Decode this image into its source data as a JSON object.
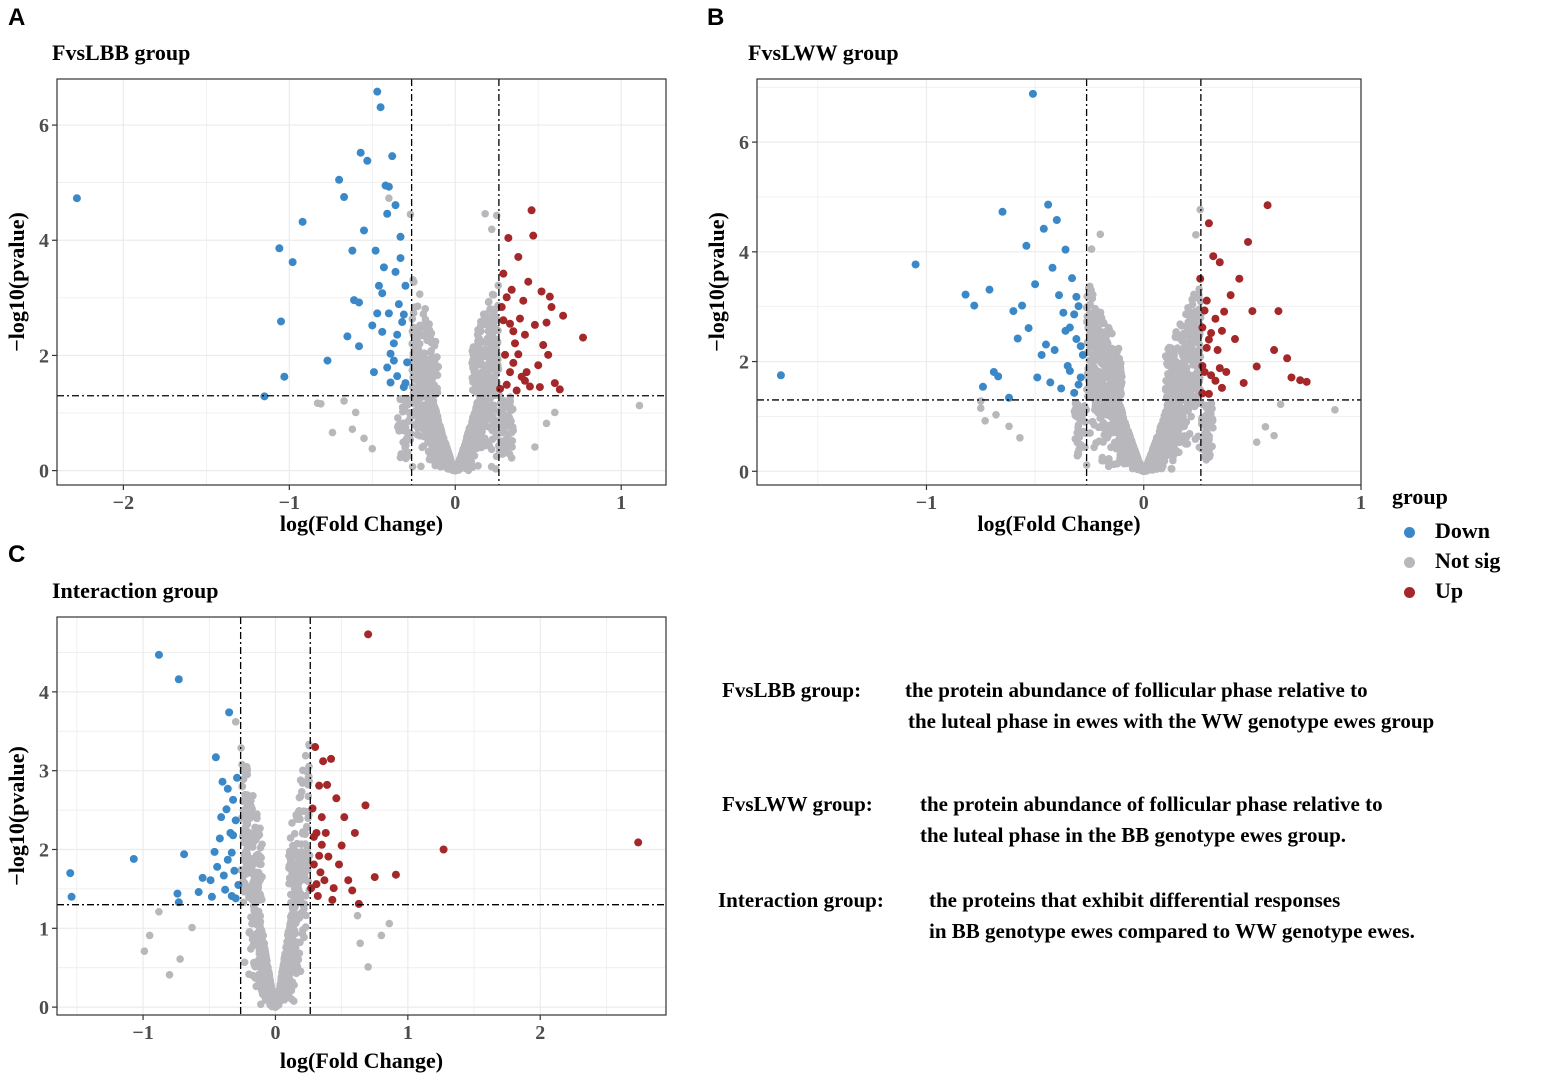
{
  "panels": {
    "A": {
      "letter": "A",
      "title": "FvsLBB group"
    },
    "B": {
      "letter": "B",
      "title": "FvsLWW group"
    },
    "C": {
      "letter": "C",
      "title": "Interaction group"
    }
  },
  "legend": {
    "title": "group",
    "items": [
      {
        "label": "Down",
        "color": "#3a88c8"
      },
      {
        "label": "Not sig",
        "color": "#b8b8bc"
      },
      {
        "label": "Up",
        "color": "#a4282a"
      }
    ]
  },
  "descriptions": {
    "fvslbb": {
      "label": "FvsLBB group:",
      "line1": "the protein abundance of follicular phase relative to",
      "line2": "the luteal phase in ewes with the WW genotype ewes group"
    },
    "fvslww": {
      "label": "FvsLWW group:",
      "line1": "the protein abundance of follicular phase relative to",
      "line2": "the luteal phase in the BB genotype ewes group."
    },
    "interaction": {
      "label": "Interaction group:",
      "line1": "the proteins that exhibit differential responses",
      "line2": "in BB genotype ewes compared to WW genotype ewes."
    }
  },
  "chart_data": [
    {
      "type": "scatter",
      "panel": "A",
      "title": "FvsLBB group",
      "xlabel": "log(Fold Change)",
      "ylabel": "−log10(pvalue)",
      "xlim": [
        -2.4,
        1.27
      ],
      "ylim": [
        -0.25,
        6.8
      ],
      "xticks": [
        -2,
        -1,
        0,
        1
      ],
      "yticks": [
        0,
        2,
        4,
        6
      ],
      "xtick_labels": [
        "−2",
        "−1",
        "0",
        "1"
      ],
      "ytick_labels": [
        "0",
        "2",
        "4",
        "6"
      ],
      "vlines": [
        -0.263,
        0.263
      ],
      "hline": 1.3,
      "cloud": {
        "xmax": 0.35,
        "n": 1100,
        "curv": 1.6
      },
      "down": [
        [
          -2.28,
          4.73
        ],
        [
          -1.15,
          1.29
        ],
        [
          -1.06,
          3.86
        ],
        [
          -1.05,
          2.59
        ],
        [
          -1.03,
          1.63
        ],
        [
          -0.98,
          3.62
        ],
        [
          -0.92,
          4.32
        ],
        [
          -0.77,
          1.91
        ],
        [
          -0.7,
          5.05
        ],
        [
          -0.67,
          4.75
        ],
        [
          -0.65,
          2.33
        ],
        [
          -0.62,
          3.82
        ],
        [
          -0.61,
          2.96
        ],
        [
          -0.58,
          2.92
        ],
        [
          -0.58,
          2.16
        ],
        [
          -0.57,
          5.52
        ],
        [
          -0.55,
          4.17
        ],
        [
          -0.53,
          5.38
        ],
        [
          -0.5,
          2.52
        ],
        [
          -0.48,
          3.82
        ],
        [
          -0.47,
          6.58
        ],
        [
          -0.45,
          6.31
        ],
        [
          -0.44,
          3.08
        ],
        [
          -0.42,
          4.95
        ],
        [
          -0.41,
          4.46
        ],
        [
          -0.4,
          2.73
        ],
        [
          -0.39,
          1.53
        ],
        [
          -0.38,
          5.46
        ],
        [
          -0.37,
          2.21
        ],
        [
          -0.36,
          3.45
        ],
        [
          -0.35,
          1.64
        ],
        [
          -0.33,
          4.06
        ],
        [
          -0.32,
          2.58
        ],
        [
          -0.31,
          1.45
        ],
        [
          -0.3,
          3.21
        ],
        [
          -0.29,
          1.88
        ],
        [
          -0.43,
          3.53
        ],
        [
          -0.46,
          3.21
        ],
        [
          -0.34,
          2.89
        ],
        [
          -0.39,
          2.03
        ],
        [
          -0.41,
          1.79
        ],
        [
          -0.36,
          4.61
        ],
        [
          -0.44,
          2.41
        ],
        [
          -0.31,
          2.71
        ],
        [
          -0.33,
          3.69
        ],
        [
          -0.37,
          1.91
        ],
        [
          -0.47,
          2.73
        ],
        [
          -0.4,
          4.93
        ],
        [
          -0.3,
          1.52
        ],
        [
          -0.49,
          1.71
        ],
        [
          -0.35,
          2.36
        ]
      ],
      "up": [
        [
          0.27,
          1.42
        ],
        [
          0.28,
          2.84
        ],
        [
          0.29,
          3.42
        ],
        [
          0.3,
          2.01
        ],
        [
          0.31,
          1.49
        ],
        [
          0.32,
          4.04
        ],
        [
          0.33,
          2.55
        ],
        [
          0.34,
          3.14
        ],
        [
          0.35,
          1.87
        ],
        [
          0.36,
          2.21
        ],
        [
          0.37,
          1.39
        ],
        [
          0.38,
          3.71
        ],
        [
          0.39,
          2.64
        ],
        [
          0.4,
          1.63
        ],
        [
          0.41,
          2.95
        ],
        [
          0.42,
          2.36
        ],
        [
          0.43,
          1.71
        ],
        [
          0.44,
          3.28
        ],
        [
          0.45,
          1.46
        ],
        [
          0.46,
          4.52
        ],
        [
          0.47,
          4.08
        ],
        [
          0.48,
          2.53
        ],
        [
          0.5,
          1.83
        ],
        [
          0.51,
          1.45
        ],
        [
          0.52,
          3.11
        ],
        [
          0.53,
          2.18
        ],
        [
          0.55,
          2.57
        ],
        [
          0.56,
          2.01
        ],
        [
          0.58,
          2.84
        ],
        [
          0.6,
          1.52
        ],
        [
          0.63,
          1.41
        ],
        [
          0.65,
          2.69
        ],
        [
          0.77,
          2.31
        ],
        [
          0.29,
          2.61
        ],
        [
          0.31,
          3.01
        ],
        [
          0.33,
          1.71
        ],
        [
          0.35,
          2.42
        ],
        [
          0.38,
          2.02
        ],
        [
          0.42,
          1.56
        ],
        [
          0.57,
          3.02
        ]
      ],
      "ns_extra": [
        [
          1.11,
          1.13
        ],
        [
          -0.83,
          1.17
        ],
        [
          -0.81,
          1.16
        ],
        [
          -0.67,
          1.21
        ],
        [
          -0.6,
          1.01
        ],
        [
          -0.62,
          0.72
        ],
        [
          -0.55,
          0.56
        ],
        [
          -0.5,
          0.38
        ],
        [
          0.55,
          0.82
        ],
        [
          0.6,
          1.01
        ],
        [
          0.48,
          0.41
        ],
        [
          -0.27,
          4.45
        ],
        [
          0.18,
          4.46
        ],
        [
          0.22,
          4.19
        ],
        [
          -0.4,
          4.73
        ],
        [
          0.25,
          4.43
        ],
        [
          -0.74,
          0.66
        ]
      ]
    },
    {
      "type": "scatter",
      "panel": "B",
      "title": "FvsLWW group",
      "xlabel": "log(Fold Change)",
      "ylabel": "−log10(pvalue)",
      "xlim": [
        -1.78,
        1.0
      ],
      "ylim": [
        -0.25,
        7.15
      ],
      "xticks": [
        -1,
        0,
        1
      ],
      "yticks": [
        0,
        2,
        4,
        6
      ],
      "xtick_labels": [
        "−1",
        "0",
        "1"
      ],
      "ytick_labels": [
        "0",
        "2",
        "4",
        "6"
      ],
      "vlines": [
        -0.263,
        0.263
      ],
      "hline": 1.3,
      "cloud": {
        "xmax": 0.32,
        "n": 1500,
        "curv": 1.7
      },
      "down": [
        [
          -1.67,
          1.75
        ],
        [
          -1.05,
          3.77
        ],
        [
          -0.82,
          3.22
        ],
        [
          -0.78,
          3.02
        ],
        [
          -0.74,
          1.54
        ],
        [
          -0.71,
          3.31
        ],
        [
          -0.69,
          1.81
        ],
        [
          -0.67,
          1.73
        ],
        [
          -0.65,
          4.73
        ],
        [
          -0.62,
          1.34
        ],
        [
          -0.6,
          2.92
        ],
        [
          -0.58,
          2.42
        ],
        [
          -0.56,
          3.02
        ],
        [
          -0.54,
          4.11
        ],
        [
          -0.53,
          2.61
        ],
        [
          -0.51,
          6.88
        ],
        [
          -0.5,
          3.41
        ],
        [
          -0.49,
          1.71
        ],
        [
          -0.47,
          2.12
        ],
        [
          -0.46,
          4.42
        ],
        [
          -0.45,
          2.31
        ],
        [
          -0.44,
          4.86
        ],
        [
          -0.43,
          1.62
        ],
        [
          -0.42,
          3.71
        ],
        [
          -0.41,
          2.21
        ],
        [
          -0.4,
          4.58
        ],
        [
          -0.39,
          3.21
        ],
        [
          -0.38,
          1.51
        ],
        [
          -0.37,
          2.89
        ],
        [
          -0.36,
          4.04
        ],
        [
          -0.35,
          1.92
        ],
        [
          -0.34,
          2.62
        ],
        [
          -0.33,
          3.52
        ],
        [
          -0.32,
          1.43
        ],
        [
          -0.31,
          2.41
        ],
        [
          -0.3,
          3.01
        ],
        [
          -0.29,
          1.71
        ],
        [
          -0.28,
          2.12
        ],
        [
          -0.36,
          2.56
        ],
        [
          -0.32,
          2.86
        ],
        [
          -0.3,
          1.58
        ],
        [
          -0.29,
          2.28
        ],
        [
          -0.34,
          1.83
        ],
        [
          -0.31,
          3.18
        ]
      ],
      "up": [
        [
          0.26,
          3.51
        ],
        [
          0.27,
          2.62
        ],
        [
          0.28,
          1.81
        ],
        [
          0.29,
          3.11
        ],
        [
          0.3,
          1.41
        ],
        [
          0.31,
          2.52
        ],
        [
          0.32,
          3.92
        ],
        [
          0.33,
          1.65
        ],
        [
          0.34,
          2.21
        ],
        [
          0.35,
          3.81
        ],
        [
          0.36,
          1.52
        ],
        [
          0.37,
          2.91
        ],
        [
          0.38,
          1.81
        ],
        [
          0.4,
          3.21
        ],
        [
          0.42,
          2.41
        ],
        [
          0.44,
          3.51
        ],
        [
          0.46,
          1.61
        ],
        [
          0.48,
          4.18
        ],
        [
          0.5,
          2.92
        ],
        [
          0.52,
          1.91
        ],
        [
          0.57,
          4.85
        ],
        [
          0.6,
          2.21
        ],
        [
          0.62,
          2.92
        ],
        [
          0.66,
          2.06
        ],
        [
          0.68,
          1.71
        ],
        [
          0.72,
          1.66
        ],
        [
          0.75,
          1.63
        ],
        [
          0.27,
          1.92
        ],
        [
          0.28,
          2.93
        ],
        [
          0.29,
          2.25
        ],
        [
          0.31,
          1.75
        ],
        [
          0.33,
          2.78
        ],
        [
          0.35,
          1.88
        ],
        [
          0.27,
          1.42
        ],
        [
          0.3,
          2.4
        ],
        [
          0.36,
          2.56
        ],
        [
          0.3,
          4.52
        ]
      ],
      "ns_extra": [
        [
          0.88,
          1.12
        ],
        [
          -0.75,
          1.15
        ],
        [
          -0.73,
          0.92
        ],
        [
          -0.68,
          1.03
        ],
        [
          -0.62,
          0.82
        ],
        [
          -0.57,
          0.61
        ],
        [
          0.56,
          0.81
        ],
        [
          0.52,
          0.53
        ],
        [
          0.63,
          1.22
        ],
        [
          -0.2,
          4.32
        ],
        [
          0.26,
          4.77
        ],
        [
          0.24,
          4.31
        ],
        [
          -0.24,
          4.05
        ],
        [
          -0.75,
          1.28
        ],
        [
          0.6,
          0.65
        ]
      ]
    },
    {
      "type": "scatter",
      "panel": "C",
      "title": "Interaction group",
      "xlabel": "log(Fold Change)",
      "ylabel": "−log10(pvalue)",
      "xlim": [
        -1.65,
        2.95
      ],
      "ylim": [
        -0.1,
        4.95
      ],
      "xticks": [
        -1,
        0,
        1,
        2
      ],
      "yticks": [
        0,
        1,
        2,
        3,
        4
      ],
      "xtick_labels": [
        "−1",
        "0",
        "1",
        "2"
      ],
      "ytick_labels": [
        "0",
        "1",
        "2",
        "3",
        "4"
      ],
      "vlines": [
        -0.263,
        0.263
      ],
      "hline": 1.3,
      "cloud": {
        "xmax": 0.24,
        "n": 800,
        "curv": 1.6
      },
      "down": [
        [
          -1.55,
          1.7
        ],
        [
          -1.54,
          1.4
        ],
        [
          -1.07,
          1.88
        ],
        [
          -0.88,
          4.47
        ],
        [
          -0.73,
          4.16
        ],
        [
          -0.74,
          1.44
        ],
        [
          -0.73,
          1.33
        ],
        [
          -0.69,
          1.94
        ],
        [
          -0.58,
          1.46
        ],
        [
          -0.55,
          1.64
        ],
        [
          -0.49,
          1.61
        ],
        [
          -0.48,
          1.4
        ],
        [
          -0.46,
          1.97
        ],
        [
          -0.45,
          3.17
        ],
        [
          -0.42,
          2.14
        ],
        [
          -0.4,
          2.86
        ],
        [
          -0.38,
          1.49
        ],
        [
          -0.37,
          2.51
        ],
        [
          -0.36,
          1.87
        ],
        [
          -0.35,
          3.74
        ],
        [
          -0.34,
          2.21
        ],
        [
          -0.33,
          1.41
        ],
        [
          -0.32,
          2.63
        ],
        [
          -0.31,
          1.73
        ],
        [
          -0.3,
          2.37
        ],
        [
          -0.29,
          2.91
        ],
        [
          -0.28,
          1.55
        ],
        [
          -0.41,
          2.41
        ],
        [
          -0.39,
          1.67
        ],
        [
          -0.36,
          2.77
        ],
        [
          -0.33,
          1.96
        ],
        [
          -0.3,
          1.38
        ],
        [
          -0.44,
          1.78
        ],
        [
          -0.32,
          2.18
        ]
      ],
      "up": [
        [
          0.27,
          1.51
        ],
        [
          0.28,
          2.52
        ],
        [
          0.29,
          1.81
        ],
        [
          0.3,
          3.3
        ],
        [
          0.31,
          2.21
        ],
        [
          0.32,
          1.41
        ],
        [
          0.33,
          2.81
        ],
        [
          0.34,
          1.71
        ],
        [
          0.35,
          2.41
        ],
        [
          0.36,
          3.12
        ],
        [
          0.37,
          1.61
        ],
        [
          0.38,
          2.21
        ],
        [
          0.4,
          1.91
        ],
        [
          0.42,
          3.15
        ],
        [
          0.44,
          1.51
        ],
        [
          0.46,
          2.65
        ],
        [
          0.48,
          1.81
        ],
        [
          0.5,
          2.05
        ],
        [
          0.52,
          2.41
        ],
        [
          0.55,
          1.61
        ],
        [
          0.58,
          1.48
        ],
        [
          0.6,
          2.21
        ],
        [
          0.63,
          1.31
        ],
        [
          0.68,
          2.56
        ],
        [
          0.7,
          4.73
        ],
        [
          0.75,
          1.65
        ],
        [
          0.91,
          1.68
        ],
        [
          1.27,
          2.0
        ],
        [
          2.74,
          2.09
        ],
        [
          0.29,
          2.16
        ],
        [
          0.31,
          1.56
        ],
        [
          0.33,
          1.92
        ],
        [
          0.35,
          2.06
        ],
        [
          0.39,
          2.82
        ],
        [
          0.43,
          1.36
        ]
      ],
      "ns_extra": [
        [
          -0.99,
          0.71
        ],
        [
          -0.95,
          0.91
        ],
        [
          -0.8,
          0.41
        ],
        [
          -0.72,
          0.61
        ],
        [
          -0.88,
          1.21
        ],
        [
          0.64,
          0.81
        ],
        [
          0.7,
          0.51
        ],
        [
          0.86,
          1.06
        ],
        [
          0.8,
          0.91
        ],
        [
          -0.3,
          3.62
        ],
        [
          0.19,
          2.88
        ],
        [
          -0.21,
          2.69
        ],
        [
          -0.63,
          1.01
        ],
        [
          0.62,
          1.16
        ]
      ]
    }
  ]
}
